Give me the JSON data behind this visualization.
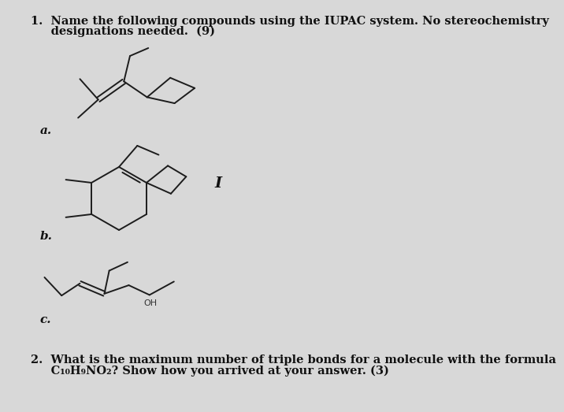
{
  "bg_color": "#d8d8d8",
  "line_color": "#1c1c1c",
  "text_color": "#111111",
  "title1": "1.  Name the following compounds using the IUPAC system. No stereochemistry",
  "title2": "     designations needed.  (9)",
  "label_a": "a.",
  "label_b": "b.",
  "label_c": "c.",
  "label_I": "I",
  "q2_1": "2.  What is the maximum number of triple bonds for a molecule with the formula",
  "q2_2": "     C₁₀H₉NO₂? Show how you arrived at your answer. (3)",
  "font_title": 10.5,
  "font_label": 11,
  "font_q2": 10.5,
  "lw": 1.4
}
